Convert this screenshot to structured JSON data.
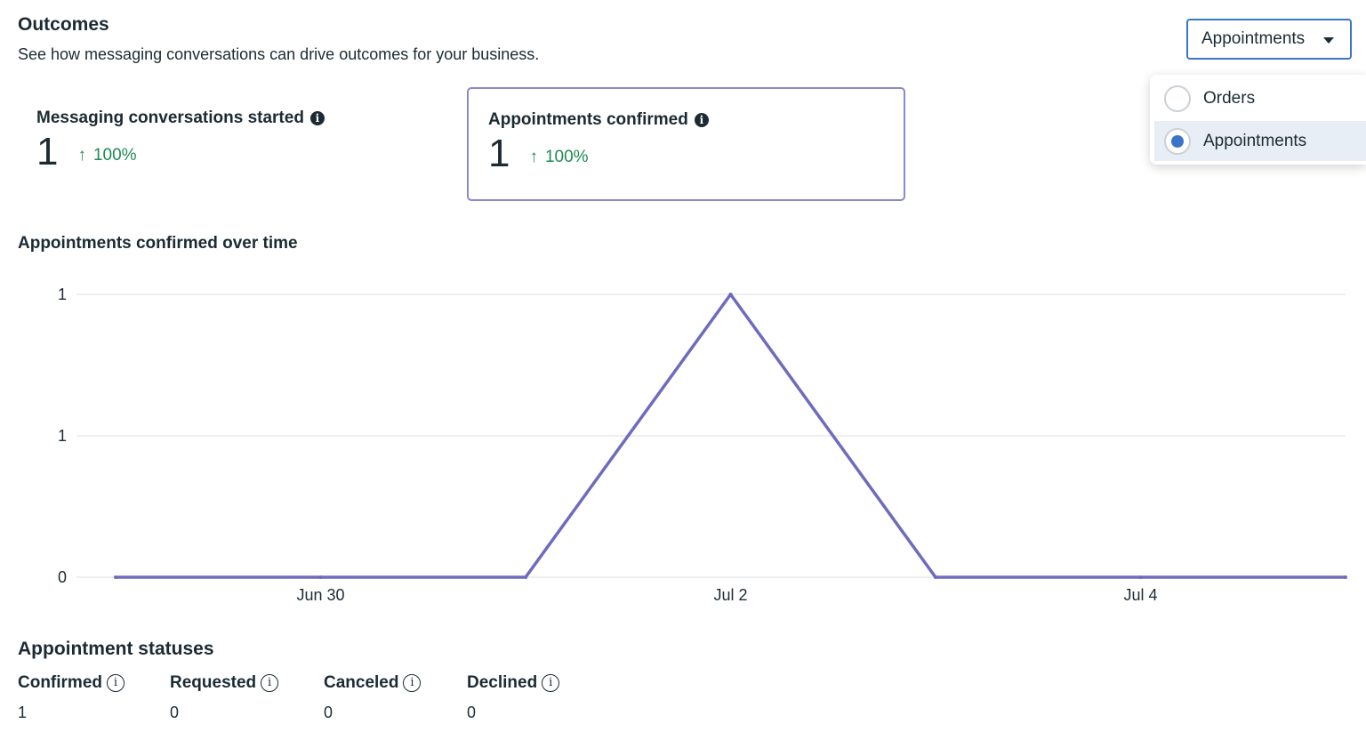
{
  "header": {
    "title": "Outcomes",
    "subtitle": "See how messaging conversations can drive outcomes for your business."
  },
  "dropdown": {
    "selected": "Appointments",
    "options": [
      {
        "label": "Orders",
        "selected": false
      },
      {
        "label": "Appointments",
        "selected": true
      }
    ]
  },
  "metrics": [
    {
      "label": "Messaging conversations started",
      "value": "1",
      "change": "100%",
      "direction": "up",
      "icon": "info-icon"
    },
    {
      "label": "Appointments confirmed",
      "value": "1",
      "change": "100%",
      "direction": "up",
      "icon": "info-icon",
      "selected": true
    }
  ],
  "colors": {
    "accent": "#3b74c9",
    "line": "#6e6bbf",
    "card_border": "#8a88cf",
    "positive": "#1f8a55"
  },
  "chart_title": "Appointments confirmed over time",
  "chart_data": {
    "type": "line",
    "x_labels": [
      "Jun 30",
      "Jul 2",
      "Jul 4"
    ],
    "y_tick_labels": [
      "0",
      "1",
      "1"
    ],
    "ylim": [
      0,
      1
    ],
    "grid": true,
    "series": [
      {
        "values": [
          0,
          0,
          0,
          1,
          0,
          0,
          0
        ]
      }
    ]
  },
  "statuses": {
    "title": "Appointment statuses",
    "items": [
      {
        "label": "Confirmed",
        "value": "1"
      },
      {
        "label": "Requested",
        "value": "0"
      },
      {
        "label": "Canceled",
        "value": "0"
      },
      {
        "label": "Declined",
        "value": "0"
      }
    ]
  }
}
